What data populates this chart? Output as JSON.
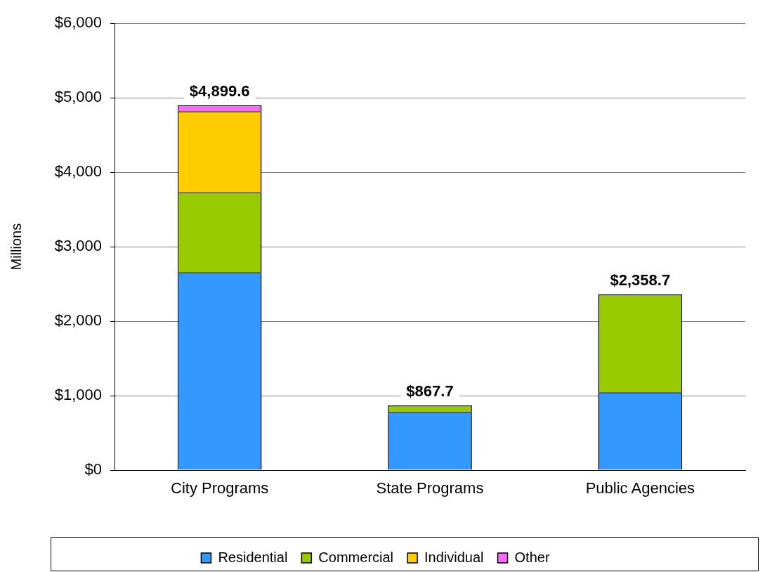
{
  "chart_data": {
    "type": "bar",
    "stacked": true,
    "ylabel": "Millions",
    "categories": [
      "City Programs",
      "State Programs",
      "Public Agencies"
    ],
    "series": [
      {
        "name": "Residential",
        "color": "#3399ff",
        "values": [
          2660,
          780,
          1045
        ]
      },
      {
        "name": "Commercial",
        "color": "#99cc00",
        "values": [
          1070,
          87.7,
          1313.7
        ]
      },
      {
        "name": "Individual",
        "color": "#ffcc00",
        "values": [
          1090,
          null,
          null
        ]
      },
      {
        "name": "Other",
        "color": "#ff66ff",
        "values": [
          79.6,
          null,
          null
        ]
      }
    ],
    "totals": [
      "$4,899.6",
      "$867.7",
      "$2,358.7"
    ],
    "ylim": [
      0,
      6000
    ],
    "yticks": [
      {
        "value": 0,
        "label": "$0"
      },
      {
        "value": 1000,
        "label": "$1,000"
      },
      {
        "value": 2000,
        "label": "$2,000"
      },
      {
        "value": 3000,
        "label": "$3,000"
      },
      {
        "value": 4000,
        "label": "$4,000"
      },
      {
        "value": 5000,
        "label": "$5,000"
      },
      {
        "value": 6000,
        "label": "$6,000"
      }
    ],
    "grid": "y",
    "legend": "bottom"
  }
}
